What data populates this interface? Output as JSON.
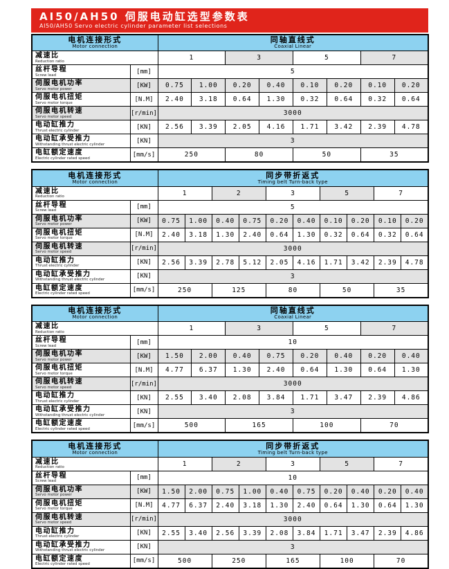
{
  "title": {
    "zh": "AI50/AH50 伺服电动缸选型参数表",
    "en": "AI50/AH50  Servo electric cylinder parameter list selections"
  },
  "labels": {
    "motor_connection": {
      "zh": "电机连接形式",
      "en": "Motor connection"
    },
    "rows": {
      "ratio": {
        "zh": "减速比",
        "en": "Reduction ratio",
        "unit": ""
      },
      "lead": {
        "zh": "丝杆导程",
        "en": "Screw lead",
        "unit": "[mm]"
      },
      "power": {
        "zh": "伺服电机功率",
        "en": "Servo motor power",
        "unit": "[KW]"
      },
      "torque": {
        "zh": "伺服电机扭矩",
        "en": "Servo motor torque",
        "unit": "[N.M]"
      },
      "motor_speed": {
        "zh": "伺服电机转速",
        "en": "Servo motor speed",
        "unit": "[r/min]"
      },
      "thrust": {
        "zh": "电动缸推力",
        "en": "Thrust electric cylinder",
        "unit": "[KN]"
      },
      "withstand": {
        "zh": "电动缸承受推力",
        "en": "Withstanding thrust electric cylinder",
        "unit": "[KN]"
      },
      "rated_speed": {
        "zh": "电缸额定速度",
        "en": "Electric cylinder rated speed",
        "unit": "[mm/s]"
      }
    }
  },
  "tables": [
    {
      "type": {
        "zh": "同轴直线式",
        "en": "Coaxial Linear"
      },
      "ratios": [
        "1",
        "3",
        "5",
        "7"
      ],
      "lead": "5",
      "power": [
        "0.75",
        "1.00",
        "0.20",
        "0.40",
        "0.10",
        "0.20",
        "0.10",
        "0.20"
      ],
      "torque": [
        "2.40",
        "3.18",
        "0.64",
        "1.30",
        "0.32",
        "0.64",
        "0.32",
        "0.64"
      ],
      "motor_speed": "3000",
      "thrust": [
        "2.56",
        "3.39",
        "2.05",
        "4.16",
        "1.71",
        "3.42",
        "2.39",
        "4.78"
      ],
      "withstand": "3",
      "rated_speed": [
        "250",
        "80",
        "50",
        "35"
      ]
    },
    {
      "type": {
        "zh": "同步带折返式",
        "en": "Timing belt Turn-back type"
      },
      "ratios": [
        "1",
        "2",
        "3",
        "5",
        "7"
      ],
      "lead": "5",
      "power": [
        "0.75",
        "1.00",
        "0.40",
        "0.75",
        "0.20",
        "0.40",
        "0.10",
        "0.20",
        "0.10",
        "0.20"
      ],
      "torque": [
        "2.40",
        "3.18",
        "1.30",
        "2.40",
        "0.64",
        "1.30",
        "0.32",
        "0.64",
        "0.32",
        "0.64"
      ],
      "motor_speed": "3000",
      "thrust": [
        "2.56",
        "3.39",
        "2.78",
        "5.12",
        "2.05",
        "4.16",
        "1.71",
        "3.42",
        "2.39",
        "4.78"
      ],
      "withstand": "3",
      "rated_speed": [
        "250",
        "125",
        "80",
        "50",
        "35"
      ]
    },
    {
      "type": {
        "zh": "同轴直线式",
        "en": "Coaxial Linear"
      },
      "ratios": [
        "1",
        "3",
        "5",
        "7"
      ],
      "lead": "10",
      "power": [
        "1.50",
        "2.00",
        "0.40",
        "0.75",
        "0.20",
        "0.40",
        "0.20",
        "0.40"
      ],
      "torque": [
        "4.77",
        "6.37",
        "1.30",
        "2.40",
        "0.64",
        "1.30",
        "0.64",
        "1.30"
      ],
      "motor_speed": "3000",
      "thrust": [
        "2.55",
        "3.40",
        "2.08",
        "3.84",
        "1.71",
        "3.47",
        "2.39",
        "4.86"
      ],
      "withstand": "3",
      "rated_speed": [
        "500",
        "165",
        "100",
        "70"
      ]
    },
    {
      "type": {
        "zh": "同步带折返式",
        "en": "Timing belt Turn-back type"
      },
      "ratios": [
        "1",
        "2",
        "3",
        "5",
        "7"
      ],
      "lead": "10",
      "power": [
        "1.50",
        "2.00",
        "0.75",
        "1.00",
        "0.40",
        "0.75",
        "0.20",
        "0.40",
        "0.20",
        "0.40"
      ],
      "torque": [
        "4.77",
        "6.37",
        "2.40",
        "3.18",
        "1.30",
        "2.40",
        "0.64",
        "1.30",
        "0.64",
        "1.30"
      ],
      "motor_speed": "3000",
      "thrust": [
        "2.55",
        "3.40",
        "2.56",
        "3.39",
        "2.08",
        "3.84",
        "1.71",
        "3.47",
        "2.39",
        "4.86"
      ],
      "withstand": "3",
      "rated_speed": [
        "500",
        "250",
        "165",
        "100",
        "70"
      ]
    }
  ],
  "colors": {
    "header_red": "#e0241b",
    "header_blue": "#8dd2f0",
    "shade_gray": "#e3e3e3"
  }
}
